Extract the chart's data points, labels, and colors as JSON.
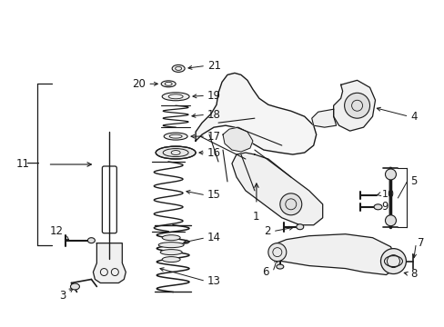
{
  "background_color": "#ffffff",
  "fig_width": 4.89,
  "fig_height": 3.6,
  "dpi": 100,
  "text_color": "#1a1a1a",
  "line_color": "#1a1a1a",
  "label_fontsize": 8.5,
  "label_fontsize_small": 7.5
}
